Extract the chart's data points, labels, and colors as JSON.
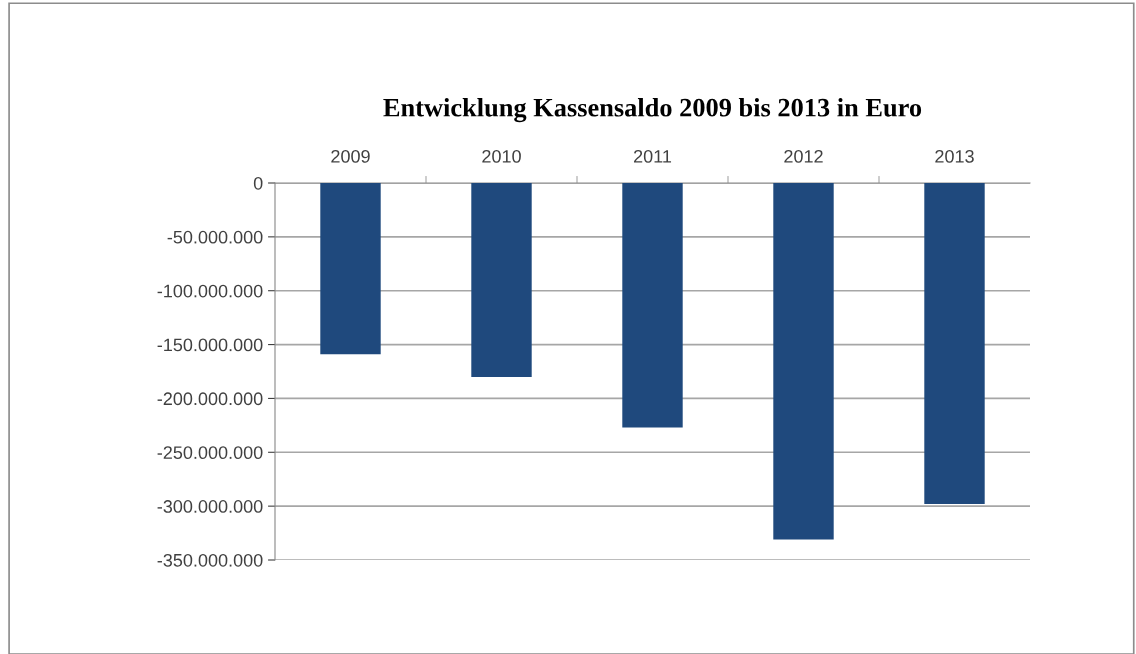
{
  "chart_data": {
    "type": "bar",
    "title": "Entwicklung Kassensaldo 2009 bis 2013 in Euro",
    "categories": [
      "2009",
      "2010",
      "2011",
      "2012",
      "2013"
    ],
    "values": [
      -159000000,
      -180000000,
      -227000000,
      -331000000,
      -298000000
    ],
    "color": "#1f497d",
    "ylim": [
      -350000000,
      0
    ],
    "yticks": [
      {
        "value": 0,
        "label": "0"
      },
      {
        "value": -50000000,
        "label": "-50.000.000"
      },
      {
        "value": -100000000,
        "label": "-100.000.000"
      },
      {
        "value": -150000000,
        "label": "-150.000.000"
      },
      {
        "value": -200000000,
        "label": "-200.000.000"
      },
      {
        "value": -250000000,
        "label": "-250.000.000"
      },
      {
        "value": -300000000,
        "label": "-300.000.000"
      },
      {
        "value": -350000000,
        "label": "-350.000.000"
      }
    ],
    "grid": "y"
  }
}
